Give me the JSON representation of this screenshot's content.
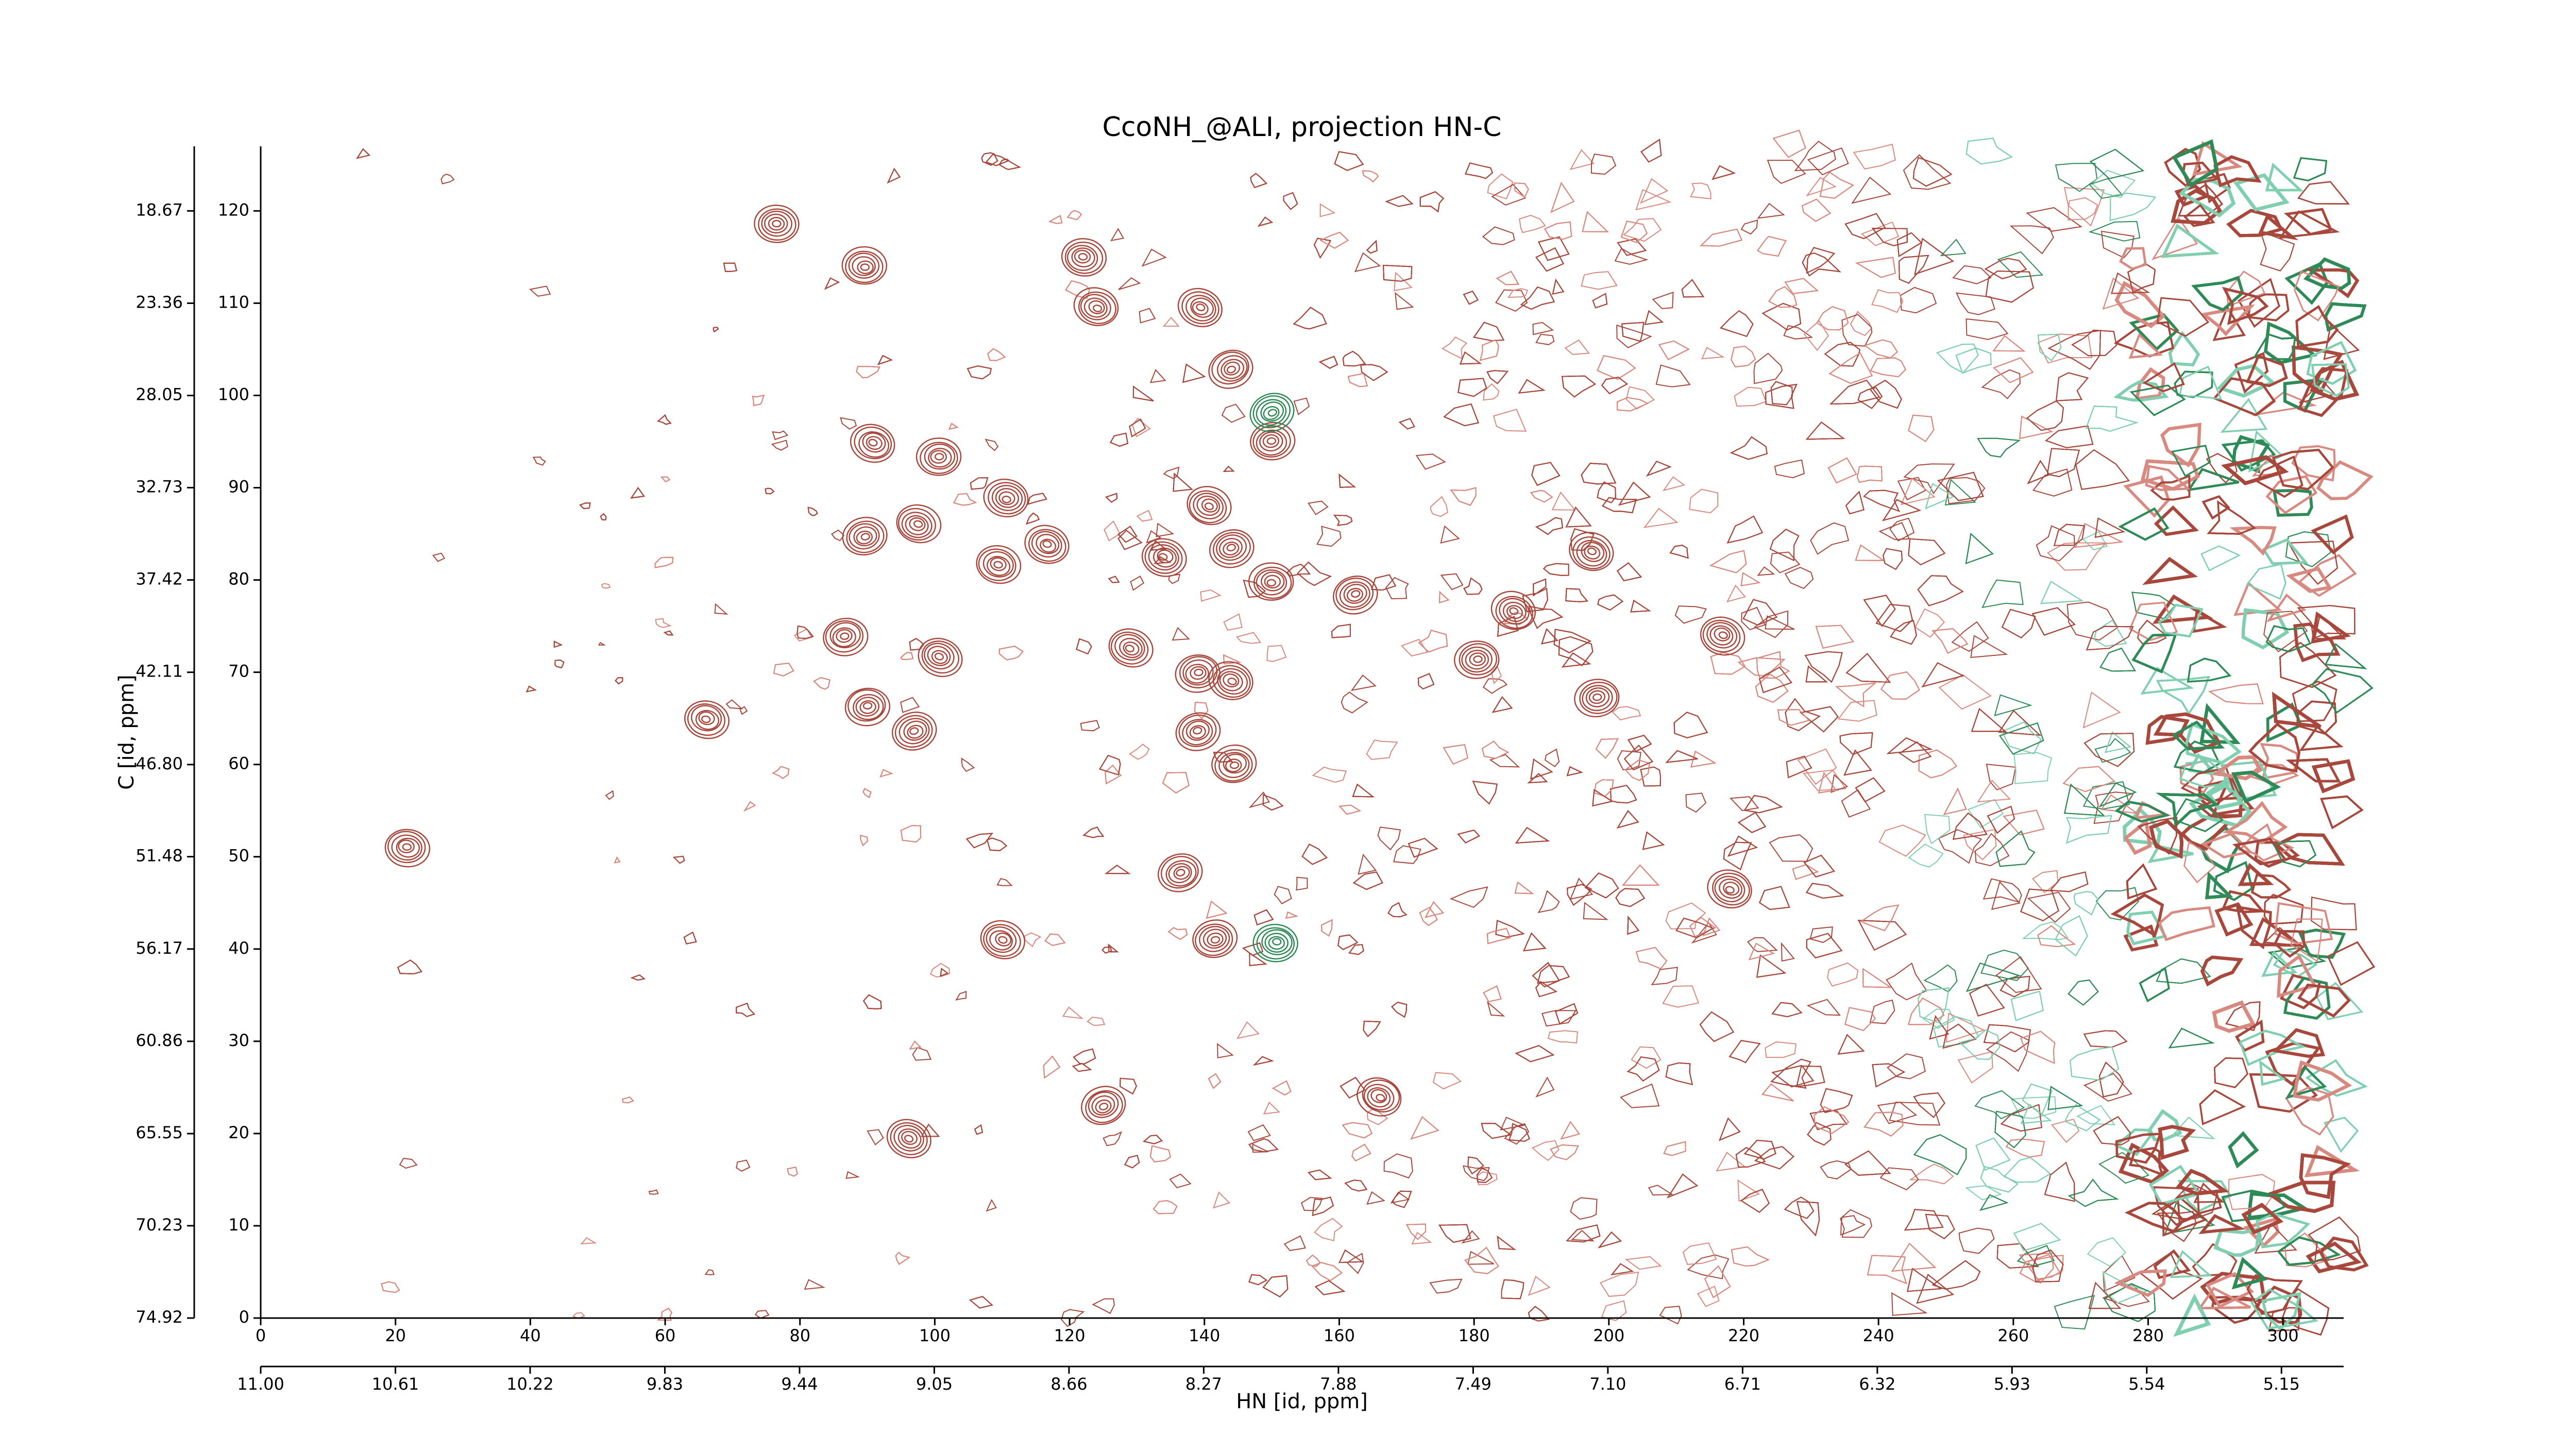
{
  "chart_data": {
    "type": "contour",
    "title": "CcoNH_@ALI, projection HN-C",
    "xlabel": "HN [id, ppm]",
    "ylabel": "C [id, ppm]",
    "xlim": [
      0,
      309
    ],
    "xticks": [
      0,
      20,
      40,
      60,
      80,
      100,
      120,
      140,
      160,
      180,
      200,
      220,
      240,
      260,
      280,
      300
    ],
    "ylim": [
      0,
      127
    ],
    "yticks": [
      0,
      10,
      20,
      30,
      40,
      50,
      60,
      70,
      80,
      90,
      100,
      110,
      120
    ],
    "x2lim": [
      11.0,
      4.97
    ],
    "x2ticks": [
      {
        "value": 11.0,
        "label": "11.00"
      },
      10.61,
      10.22,
      9.83,
      9.44,
      9.05,
      8.66,
      8.27,
      7.88,
      7.49,
      {
        "value": 7.1,
        "label": "7.10"
      },
      6.71,
      6.32,
      5.93,
      5.54,
      5.15
    ],
    "y2lim": [
      74.92,
      15.39
    ],
    "y2ticks": [
      74.92,
      70.23,
      65.55,
      60.86,
      56.17,
      51.48,
      {
        "value": 46.8,
        "label": "46.80"
      },
      42.11,
      37.42,
      32.73,
      28.05,
      23.36,
      18.67
    ],
    "series": [
      {
        "color": "#a8473c",
        "x": [
          76.5,
          89.6,
          124,
          139.5,
          144,
          150,
          140.7,
          110.6,
          116.7,
          89.6,
          97.5,
          109.4,
          134,
          144,
          162.4,
          185.9,
          216.8,
          86.7,
          100.7,
          129,
          139,
          144,
          139,
          144.4,
          90,
          97,
          198.3,
          180.5,
          110,
          141.5,
          125,
          166,
          96.3,
          21.7,
          66.2,
          218,
          197.5,
          150,
          90.9,
          100.7,
          122,
          136.5
        ],
        "values": [
          118.6,
          114,
          109.5,
          109.5,
          102.9,
          95,
          88,
          88.8,
          83.8,
          84.7,
          86,
          81.6,
          82.5,
          83.4,
          78.4,
          76.6,
          74,
          73.9,
          71.7,
          72.6,
          69.9,
          69,
          63.6,
          60,
          66.3,
          63.6,
          67.2,
          71.4,
          41,
          41,
          23,
          24,
          19.5,
          51,
          64.9,
          46.5,
          83,
          79.8,
          94.8,
          93.3,
          115,
          48.3
        ]
      },
      {
        "color": "#2e8b57",
        "x": [
          150.6,
          150
        ],
        "values": [
          40.7,
          98.2
        ]
      }
    ]
  }
}
